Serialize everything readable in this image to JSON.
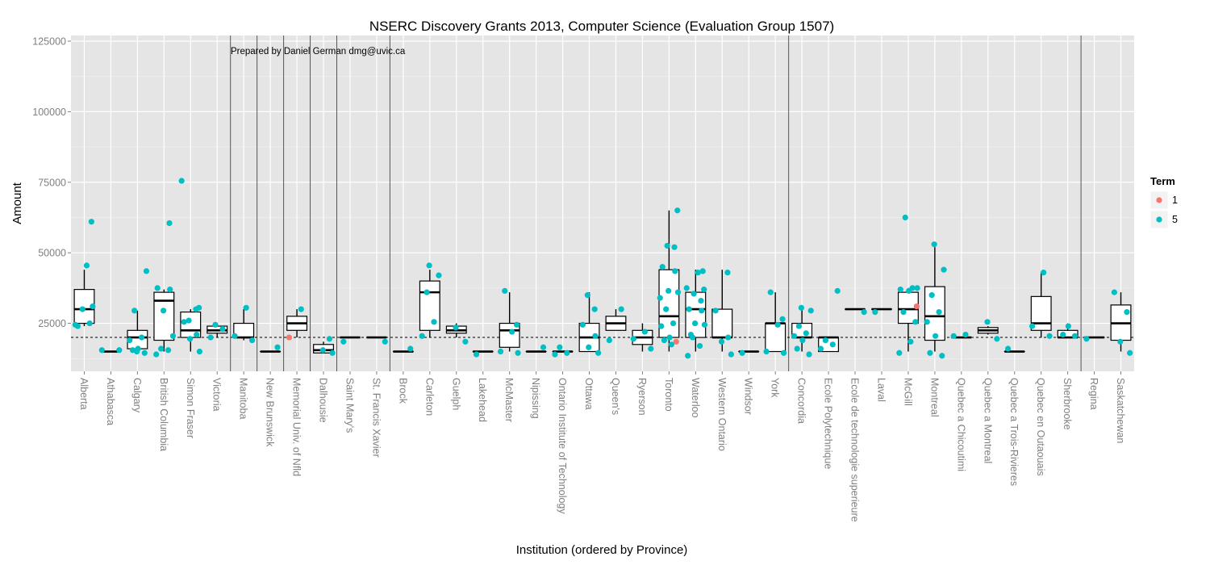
{
  "chart_data": {
    "type": "boxplot",
    "title": "NSERC Discovery Grants 2013, Computer Science (Evaluation Group 1507)",
    "annotation": "Prepared by Daniel German dmg@uvic.ca",
    "xlabel": "Institution (ordered by Province)",
    "ylabel": "Amount",
    "ylim": [
      8000,
      127000
    ],
    "y_ticks": [
      25000,
      50000,
      75000,
      100000,
      125000
    ],
    "y_tick_labels": [
      "25000",
      "50000",
      "75000",
      "100000",
      "125000"
    ],
    "reference_line": 20000,
    "province_separators_after": [
      "Victoria",
      "Manitoba",
      "New Brunswick",
      "Memorial Univ. of Nfld",
      "Dalhousie",
      "St. Francis Xavier",
      "York",
      "Sherbrooke"
    ],
    "legend": {
      "title": "Term",
      "position": "right",
      "items": [
        {
          "label": "1",
          "color": "#F8766D"
        },
        {
          "label": "5",
          "color": "#00BFC4"
        }
      ]
    },
    "colors": {
      "panel": "#E5E5E5",
      "grid": "#FFFFFF",
      "term1": "#F8766D",
      "term5": "#00BFC4"
    },
    "categories": [
      {
        "name": "Alberta",
        "box": [
          24000,
          25000,
          30000,
          37000,
          44000
        ],
        "points": [
          [
            24000,
            5
          ],
          [
            25000,
            5
          ],
          [
            30000,
            5
          ],
          [
            31000,
            5
          ],
          [
            24500,
            5
          ],
          [
            45500,
            5
          ],
          [
            61000,
            5
          ]
        ]
      },
      {
        "name": "Athabasca",
        "box": [
          15000,
          15000,
          15000,
          15000,
          15000
        ],
        "points": [
          [
            15500,
            5
          ],
          [
            15500,
            5
          ]
        ]
      },
      {
        "name": "Calgary",
        "box": [
          15000,
          16000,
          20000,
          22500,
          29500
        ],
        "points": [
          [
            14500,
            5
          ],
          [
            15500,
            5
          ],
          [
            16000,
            5
          ],
          [
            19000,
            5
          ],
          [
            20000,
            5
          ],
          [
            29500,
            5
          ],
          [
            43500,
            5
          ],
          [
            15000,
            5
          ]
        ]
      },
      {
        "name": "British Columbia",
        "box": [
          15000,
          19000,
          33000,
          36000,
          37000
        ],
        "points": [
          [
            14000,
            5
          ],
          [
            15500,
            5
          ],
          [
            16000,
            5
          ],
          [
            20500,
            5
          ],
          [
            29500,
            5
          ],
          [
            37000,
            5
          ],
          [
            37500,
            5
          ],
          [
            60500,
            5
          ]
        ]
      },
      {
        "name": "Simon Fraser",
        "box": [
          15000,
          20000,
          22500,
          29000,
          30000
        ],
        "points": [
          [
            15000,
            5
          ],
          [
            19500,
            5
          ],
          [
            21000,
            5
          ],
          [
            25500,
            5
          ],
          [
            30000,
            5
          ],
          [
            26000,
            5
          ],
          [
            30500,
            5
          ],
          [
            75500,
            5
          ]
        ]
      },
      {
        "name": "Victoria",
        "box": [
          20000,
          21500,
          22500,
          24000,
          25000
        ],
        "points": [
          [
            20000,
            5
          ],
          [
            23000,
            5
          ],
          [
            24500,
            5
          ]
        ]
      },
      {
        "name": "Manitoba",
        "box": [
          19000,
          20000,
          20000,
          25000,
          30000
        ],
        "points": [
          [
            19000,
            5
          ],
          [
            20500,
            5
          ],
          [
            30500,
            5
          ]
        ]
      },
      {
        "name": "New Brunswick",
        "box": [
          15000,
          15000,
          15000,
          15000,
          15000
        ],
        "points": [
          [
            16500,
            5
          ]
        ]
      },
      {
        "name": "Memorial Univ. of Nfld",
        "box": [
          20000,
          22500,
          25000,
          27500,
          30000
        ],
        "points": [
          [
            20000,
            1
          ],
          [
            30000,
            5
          ]
        ]
      },
      {
        "name": "Dalhousie",
        "box": [
          14500,
          14500,
          15500,
          17500,
          18500
        ],
        "points": [
          [
            14500,
            5
          ],
          [
            15500,
            5
          ],
          [
            19500,
            5
          ]
        ]
      },
      {
        "name": "Saint Mary's",
        "box": [
          20000,
          20000,
          20000,
          20000,
          20000
        ],
        "points": [
          [
            18500,
            5
          ]
        ]
      },
      {
        "name": "St. Francis Xavier",
        "box": [
          20000,
          20000,
          20000,
          20000,
          20000
        ],
        "points": [
          [
            18500,
            5
          ]
        ]
      },
      {
        "name": "Brock",
        "box": [
          15000,
          15000,
          15000,
          15000,
          15000
        ],
        "points": [
          [
            16000,
            5
          ]
        ]
      },
      {
        "name": "Carleton",
        "box": [
          20000,
          22500,
          36000,
          40000,
          44000
        ],
        "points": [
          [
            20500,
            5
          ],
          [
            25500,
            5
          ],
          [
            36000,
            5
          ],
          [
            42000,
            5
          ],
          [
            45500,
            5
          ]
        ]
      },
      {
        "name": "Guelph",
        "box": [
          20000,
          21500,
          22500,
          24000,
          25000
        ],
        "points": [
          [
            18500,
            5
          ],
          [
            23500,
            5
          ]
        ]
      },
      {
        "name": "Lakehead",
        "box": [
          15000,
          15000,
          15000,
          15000,
          15000
        ],
        "points": [
          [
            14000,
            5
          ]
        ]
      },
      {
        "name": "McMaster",
        "box": [
          15000,
          16500,
          22500,
          25000,
          36000
        ],
        "points": [
          [
            14500,
            5
          ],
          [
            15000,
            5
          ],
          [
            22000,
            5
          ],
          [
            24500,
            5
          ],
          [
            36500,
            5
          ]
        ]
      },
      {
        "name": "Nipissing",
        "box": [
          15000,
          15000,
          15000,
          15000,
          15000
        ],
        "points": [
          [
            16500,
            5
          ]
        ]
      },
      {
        "name": "Ontario Institute of Technology",
        "box": [
          15000,
          15000,
          15000,
          15000,
          15000
        ],
        "points": [
          [
            14000,
            5
          ],
          [
            14500,
            5
          ],
          [
            16500,
            5
          ]
        ]
      },
      {
        "name": "Ottawa",
        "box": [
          15000,
          15000,
          20000,
          25000,
          36000
        ],
        "points": [
          [
            14500,
            5
          ],
          [
            16500,
            5
          ],
          [
            20500,
            5
          ],
          [
            24500,
            5
          ],
          [
            30000,
            5
          ],
          [
            35000,
            5
          ]
        ]
      },
      {
        "name": "Queen's",
        "box": [
          22500,
          22500,
          25000,
          27500,
          30000
        ],
        "points": [
          [
            19000,
            5
          ],
          [
            30000,
            5
          ]
        ]
      },
      {
        "name": "Ryerson",
        "box": [
          15000,
          17500,
          20000,
          22500,
          25000
        ],
        "points": [
          [
            16000,
            5
          ],
          [
            19500,
            5
          ],
          [
            22000,
            5
          ]
        ]
      },
      {
        "name": "Toronto",
        "box": [
          15000,
          20000,
          27500,
          44000,
          65000
        ],
        "points": [
          [
            18500,
            1
          ],
          [
            19000,
            5
          ],
          [
            20000,
            5
          ],
          [
            24000,
            5
          ],
          [
            25000,
            5
          ],
          [
            30000,
            5
          ],
          [
            36000,
            5
          ],
          [
            36500,
            5
          ],
          [
            43500,
            5
          ],
          [
            45000,
            5
          ],
          [
            52000,
            5
          ],
          [
            52500,
            5
          ],
          [
            65000,
            5
          ],
          [
            34000,
            5
          ],
          [
            17500,
            5
          ]
        ]
      },
      {
        "name": "Waterloo",
        "box": [
          15000,
          20000,
          30000,
          36000,
          44000
        ],
        "points": [
          [
            13500,
            5
          ],
          [
            17000,
            5
          ],
          [
            20000,
            5
          ],
          [
            24500,
            5
          ],
          [
            25000,
            5
          ],
          [
            29500,
            5
          ],
          [
            30000,
            5
          ],
          [
            33000,
            5
          ],
          [
            35500,
            5
          ],
          [
            37000,
            5
          ],
          [
            37500,
            5
          ],
          [
            43000,
            5
          ],
          [
            43500,
            5
          ],
          [
            21000,
            5
          ]
        ]
      },
      {
        "name": "Western Ontario",
        "box": [
          15000,
          20000,
          20000,
          30000,
          44000
        ],
        "points": [
          [
            14000,
            5
          ],
          [
            18500,
            5
          ],
          [
            20000,
            5
          ],
          [
            29500,
            5
          ],
          [
            43000,
            5
          ]
        ]
      },
      {
        "name": "Windsor",
        "box": [
          15000,
          15000,
          15000,
          15000,
          15000
        ],
        "points": [
          [
            14500,
            5
          ]
        ]
      },
      {
        "name": "York",
        "box": [
          15000,
          15000,
          25000,
          25000,
          36000
        ],
        "points": [
          [
            14500,
            5
          ],
          [
            15000,
            5
          ],
          [
            24500,
            5
          ],
          [
            26500,
            5
          ],
          [
            36000,
            5
          ]
        ]
      },
      {
        "name": "Concordia",
        "box": [
          15000,
          20000,
          20000,
          25000,
          30000
        ],
        "points": [
          [
            14000,
            5
          ],
          [
            16000,
            5
          ],
          [
            19000,
            5
          ],
          [
            20500,
            5
          ],
          [
            21500,
            5
          ],
          [
            24000,
            5
          ],
          [
            29500,
            5
          ],
          [
            30500,
            5
          ]
        ]
      },
      {
        "name": "Ecole Polytechnique",
        "box": [
          15000,
          15000,
          20000,
          20000,
          20000
        ],
        "points": [
          [
            16000,
            5
          ],
          [
            17500,
            5
          ],
          [
            19000,
            5
          ],
          [
            36500,
            5
          ]
        ]
      },
      {
        "name": "Ecole de technologie superieure",
        "box": [
          30000,
          30000,
          30000,
          30000,
          30000
        ],
        "points": [
          [
            29000,
            5
          ]
        ]
      },
      {
        "name": "Laval",
        "box": [
          30000,
          30000,
          30000,
          30000,
          30000
        ],
        "points": [
          [
            29000,
            5
          ]
        ]
      },
      {
        "name": "McGill",
        "box": [
          15000,
          25000,
          30000,
          36000,
          37500
        ],
        "points": [
          [
            31000,
            1
          ],
          [
            14500,
            5
          ],
          [
            18500,
            5
          ],
          [
            25500,
            5
          ],
          [
            29000,
            5
          ],
          [
            36500,
            5
          ],
          [
            37000,
            5
          ],
          [
            37500,
            5
          ],
          [
            62500,
            5
          ],
          [
            37500,
            5
          ]
        ]
      },
      {
        "name": "Montreal",
        "box": [
          15000,
          19000,
          27500,
          38000,
          52000
        ],
        "points": [
          [
            13500,
            5
          ],
          [
            14500,
            5
          ],
          [
            20500,
            5
          ],
          [
            25500,
            5
          ],
          [
            29000,
            5
          ],
          [
            35000,
            5
          ],
          [
            44000,
            5
          ],
          [
            53000,
            5
          ]
        ]
      },
      {
        "name": "Quebec a Chicoutimi",
        "box": [
          20000,
          20000,
          20000,
          20000,
          20000
        ],
        "points": [
          [
            20500,
            5
          ],
          [
            21000,
            5
          ]
        ]
      },
      {
        "name": "Quebec a Montreal",
        "box": [
          21000,
          21500,
          22500,
          23500,
          24000
        ],
        "points": [
          [
            19500,
            5
          ],
          [
            25500,
            5
          ]
        ]
      },
      {
        "name": "Quebec a Trois-Rivieres",
        "box": [
          15000,
          15000,
          15000,
          15000,
          15000
        ],
        "points": [
          [
            16000,
            5
          ]
        ]
      },
      {
        "name": "Quebec en Outaouais",
        "box": [
          20000,
          22500,
          25000,
          34500,
          43000
        ],
        "points": [
          [
            20500,
            5
          ],
          [
            24000,
            5
          ],
          [
            43000,
            5
          ]
        ]
      },
      {
        "name": "Sherbrooke",
        "box": [
          20000,
          20000,
          20000,
          22500,
          25000
        ],
        "points": [
          [
            20500,
            5
          ],
          [
            21000,
            5
          ],
          [
            24000,
            5
          ]
        ]
      },
      {
        "name": "Regina",
        "box": [
          20000,
          20000,
          20000,
          20000,
          20000
        ],
        "points": [
          [
            19500,
            5
          ]
        ]
      },
      {
        "name": "Saskatchewan",
        "box": [
          15000,
          19000,
          25000,
          31500,
          36000
        ],
        "points": [
          [
            14500,
            5
          ],
          [
            18500,
            5
          ],
          [
            29000,
            5
          ],
          [
            36000,
            5
          ]
        ]
      }
    ]
  }
}
